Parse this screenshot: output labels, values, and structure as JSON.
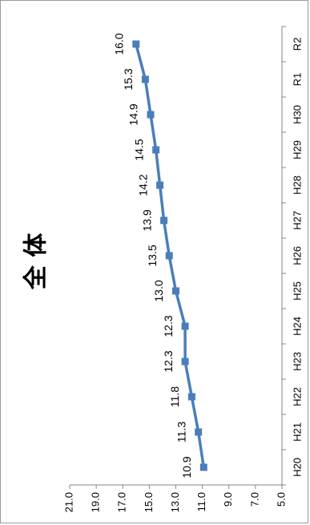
{
  "chart_data": {
    "type": "line",
    "title": "全 体",
    "orientation": "rotated-90-clockwise",
    "categories": [
      "H20",
      "H21",
      "H22",
      "H23",
      "H24",
      "H25",
      "H26",
      "H27",
      "H28",
      "H29",
      "H30",
      "R1",
      "R2"
    ],
    "series": [
      {
        "values": [
          10.9,
          11.3,
          11.8,
          12.3,
          12.3,
          13.0,
          13.5,
          13.9,
          14.2,
          14.5,
          14.9,
          15.3,
          16.0
        ],
        "marker": "square",
        "color": "#4a7ebb"
      }
    ],
    "ylim": [
      5.0,
      21.0
    ],
    "yticks": [
      "5.0",
      "7.0",
      "9.0",
      "11.0",
      "13.0",
      "15.0",
      "17.0",
      "19.0",
      "21.0"
    ],
    "data_labels": [
      "10.9",
      "11.3",
      "11.8",
      "12.3",
      "12.3",
      "13.0",
      "13.5",
      "13.9",
      "14.2",
      "14.5",
      "14.9",
      "15.3",
      "16.0"
    ],
    "grid": false,
    "legend": "none"
  }
}
